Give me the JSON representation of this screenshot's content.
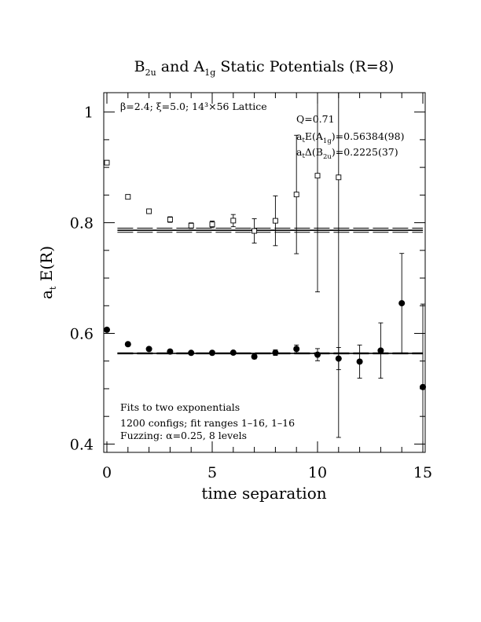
{
  "chart_data": {
    "type": "scatter",
    "title": {
      "parts": [
        {
          "t": "B",
          "sub": "2u"
        },
        {
          "t": " and A",
          "sub": "1g"
        },
        {
          "t": " Static Potentials (R=8)"
        }
      ]
    },
    "xlabel": "time separation",
    "ylabel": {
      "main": "a",
      "sub": "t",
      "rest": " E(R)"
    },
    "xlim": [
      0,
      15
    ],
    "ylim": [
      0.385,
      1.035
    ],
    "xticks": [
      {
        "v": 0,
        "label": "0"
      },
      {
        "v": 5,
        "label": "5"
      },
      {
        "v": 10,
        "label": "10"
      },
      {
        "v": 15,
        "label": "15"
      }
    ],
    "yticks": [
      {
        "v": 0.4,
        "label": "0.4"
      },
      {
        "v": 0.6,
        "label": "0.6"
      },
      {
        "v": 0.8,
        "label": "0.8"
      },
      {
        "v": 1.0,
        "label": "1"
      }
    ],
    "lattice_label": "β=2.4; ξ=5.0; 14³×56 Lattice",
    "fit_info": {
      "q_label": "Q=0.71",
      "a1g_fit": {
        "pre": "a",
        "sub1": "t",
        "mid": "E(A",
        "sub2": "1g",
        "post": ")=0.56384(98)"
      },
      "b2u_fit": {
        "pre": "a",
        "sub1": "t",
        "mid": "Δ(B",
        "sub2": "2u",
        "post": ")=0.2225(37)"
      }
    },
    "bottom_notes": [
      "Fits to two exponentials",
      "1200 configs; fit ranges 1–16, 1–16",
      "Fuzzing: α=0.25, 8 levels"
    ],
    "series": [
      {
        "marker": "filled-circle",
        "points": [
          {
            "x": 0,
            "y": 0.6065,
            "err": 0.002
          },
          {
            "x": 1,
            "y": 0.5805,
            "err": 0.002
          },
          {
            "x": 2,
            "y": 0.5718,
            "err": 0.002
          },
          {
            "x": 3,
            "y": 0.5672,
            "err": 0.002
          },
          {
            "x": 4,
            "y": 0.5648,
            "err": 0.002
          },
          {
            "x": 5,
            "y": 0.5649,
            "err": 0.003
          },
          {
            "x": 6,
            "y": 0.5652,
            "err": 0.003
          },
          {
            "x": 7,
            "y": 0.558,
            "err": 0.004
          },
          {
            "x": 8,
            "y": 0.5652,
            "err": 0.005
          },
          {
            "x": 9,
            "y": 0.572,
            "err": 0.007
          },
          {
            "x": 10,
            "y": 0.5615,
            "err": 0.011
          },
          {
            "x": 11,
            "y": 0.5545,
            "err": 0.02
          },
          {
            "x": 12,
            "y": 0.549,
            "err": 0.03
          },
          {
            "x": 13,
            "y": 0.569,
            "err": 0.05
          },
          {
            "x": 14,
            "y": 0.6545,
            "err": 0.09
          },
          {
            "x": 15,
            "y": 0.503,
            "err": 0.15
          }
        ],
        "fit": {
          "y": 0.56384,
          "err": 0.00098,
          "x_range": [
            0.5,
            15
          ]
        }
      },
      {
        "marker": "open-square",
        "points": [
          {
            "x": 0,
            "y": 0.9085,
            "err": 0.004
          },
          {
            "x": 1,
            "y": 0.8467,
            "err": 0.004
          },
          {
            "x": 2,
            "y": 0.8207,
            "err": 0.004
          },
          {
            "x": 3,
            "y": 0.8057,
            "err": 0.005
          },
          {
            "x": 4,
            "y": 0.7947,
            "err": 0.005
          },
          {
            "x": 5,
            "y": 0.797,
            "err": 0.006
          },
          {
            "x": 6,
            "y": 0.8038,
            "err": 0.011
          },
          {
            "x": 7,
            "y": 0.7852,
            "err": 0.022
          },
          {
            "x": 8,
            "y": 0.8035,
            "err": 0.045
          },
          {
            "x": 9,
            "y": 0.851,
            "err": 0.107
          },
          {
            "x": 10,
            "y": 0.885,
            "err": 0.21
          },
          {
            "x": 11,
            "y": 0.882,
            "err": 0.47
          }
        ],
        "fit": {
          "y": 0.7864,
          "err": 0.0037,
          "x_range": [
            0.5,
            15
          ]
        }
      }
    ]
  }
}
